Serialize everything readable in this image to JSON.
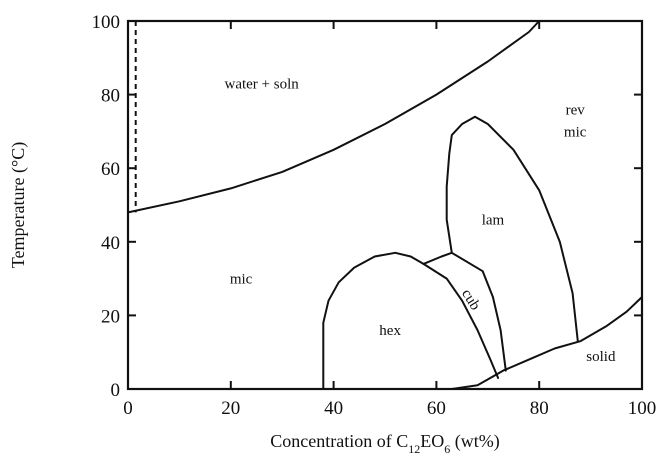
{
  "chart_data": {
    "type": "line",
    "title": "",
    "xlabel": "Concentration of C",
    "xlabel_sub1": "12",
    "xlabel_mid": "EO",
    "xlabel_sub2": "6",
    "xlabel_unit": " (wt%)",
    "ylabel": "Temperature (°C)",
    "xlim": [
      0,
      100
    ],
    "ylim": [
      0,
      100
    ],
    "xticks": [
      "0",
      "20",
      "40",
      "60",
      "80",
      "100"
    ],
    "yticks": [
      "0",
      "20",
      "40",
      "60",
      "80",
      "100"
    ],
    "grid": false,
    "series": [
      {
        "name": "",
        "style": "solid",
        "points": [
          [
            0,
            48
          ],
          [
            10,
            51
          ],
          [
            20,
            54.5
          ],
          [
            30,
            59
          ],
          [
            40,
            65
          ],
          [
            50,
            72
          ],
          [
            60,
            80
          ],
          [
            70,
            89
          ],
          [
            78,
            97
          ],
          [
            80,
            100
          ]
        ]
      },
      {
        "name": "",
        "style": "dashed",
        "points": [
          [
            1.5,
            100
          ],
          [
            1.5,
            48
          ]
        ]
      },
      {
        "name": "",
        "style": "solid",
        "points": [
          [
            38,
            0
          ],
          [
            38,
            18
          ],
          [
            39,
            24
          ],
          [
            41,
            29
          ],
          [
            44,
            33
          ],
          [
            48,
            36
          ],
          [
            52,
            37
          ],
          [
            55,
            36
          ],
          [
            57.5,
            34
          ]
        ]
      },
      {
        "name": "",
        "style": "solid",
        "points": [
          [
            57.5,
            34
          ],
          [
            62,
            30
          ],
          [
            65,
            24
          ],
          [
            68,
            16
          ],
          [
            70.5,
            8
          ],
          [
            72,
            3
          ]
        ]
      },
      {
        "name": "",
        "style": "solid",
        "points": [
          [
            57.5,
            34
          ],
          [
            61,
            36
          ],
          [
            63,
            37
          ]
        ]
      },
      {
        "name": "",
        "style": "solid",
        "points": [
          [
            63,
            37
          ],
          [
            69,
            32
          ],
          [
            71,
            25
          ],
          [
            72.5,
            16
          ],
          [
            73.5,
            5
          ]
        ]
      },
      {
        "name": "",
        "style": "solid",
        "points": [
          [
            63,
            37
          ],
          [
            62,
            46
          ],
          [
            62,
            55
          ],
          [
            62.5,
            64
          ],
          [
            63,
            69
          ],
          [
            65,
            72
          ],
          [
            67.5,
            74
          ],
          [
            70,
            72
          ],
          [
            75,
            65
          ],
          [
            80,
            54
          ],
          [
            84,
            40
          ],
          [
            86.5,
            26
          ],
          [
            87.5,
            13
          ]
        ]
      },
      {
        "name": "",
        "style": "solid",
        "points": [
          [
            63,
            0
          ],
          [
            68,
            1
          ],
          [
            73,
            5
          ],
          [
            78,
            8
          ],
          [
            83,
            11
          ],
          [
            88,
            13
          ],
          [
            93,
            17
          ],
          [
            97,
            21
          ],
          [
            100,
            25
          ]
        ]
      }
    ],
    "annotations": [
      {
        "text": "water + soln",
        "x": 26,
        "y": 83
      },
      {
        "text": "rev",
        "x": 87,
        "y": 76
      },
      {
        "text": "mic",
        "x": 87,
        "y": 70
      },
      {
        "text": "lam",
        "x": 71,
        "y": 46
      },
      {
        "text": "mic",
        "x": 22,
        "y": 30
      },
      {
        "text": "hex",
        "x": 51,
        "y": 16
      },
      {
        "text": "cub",
        "x": 66,
        "y": 25
      },
      {
        "text": "solid",
        "x": 92,
        "y": 9
      }
    ]
  }
}
